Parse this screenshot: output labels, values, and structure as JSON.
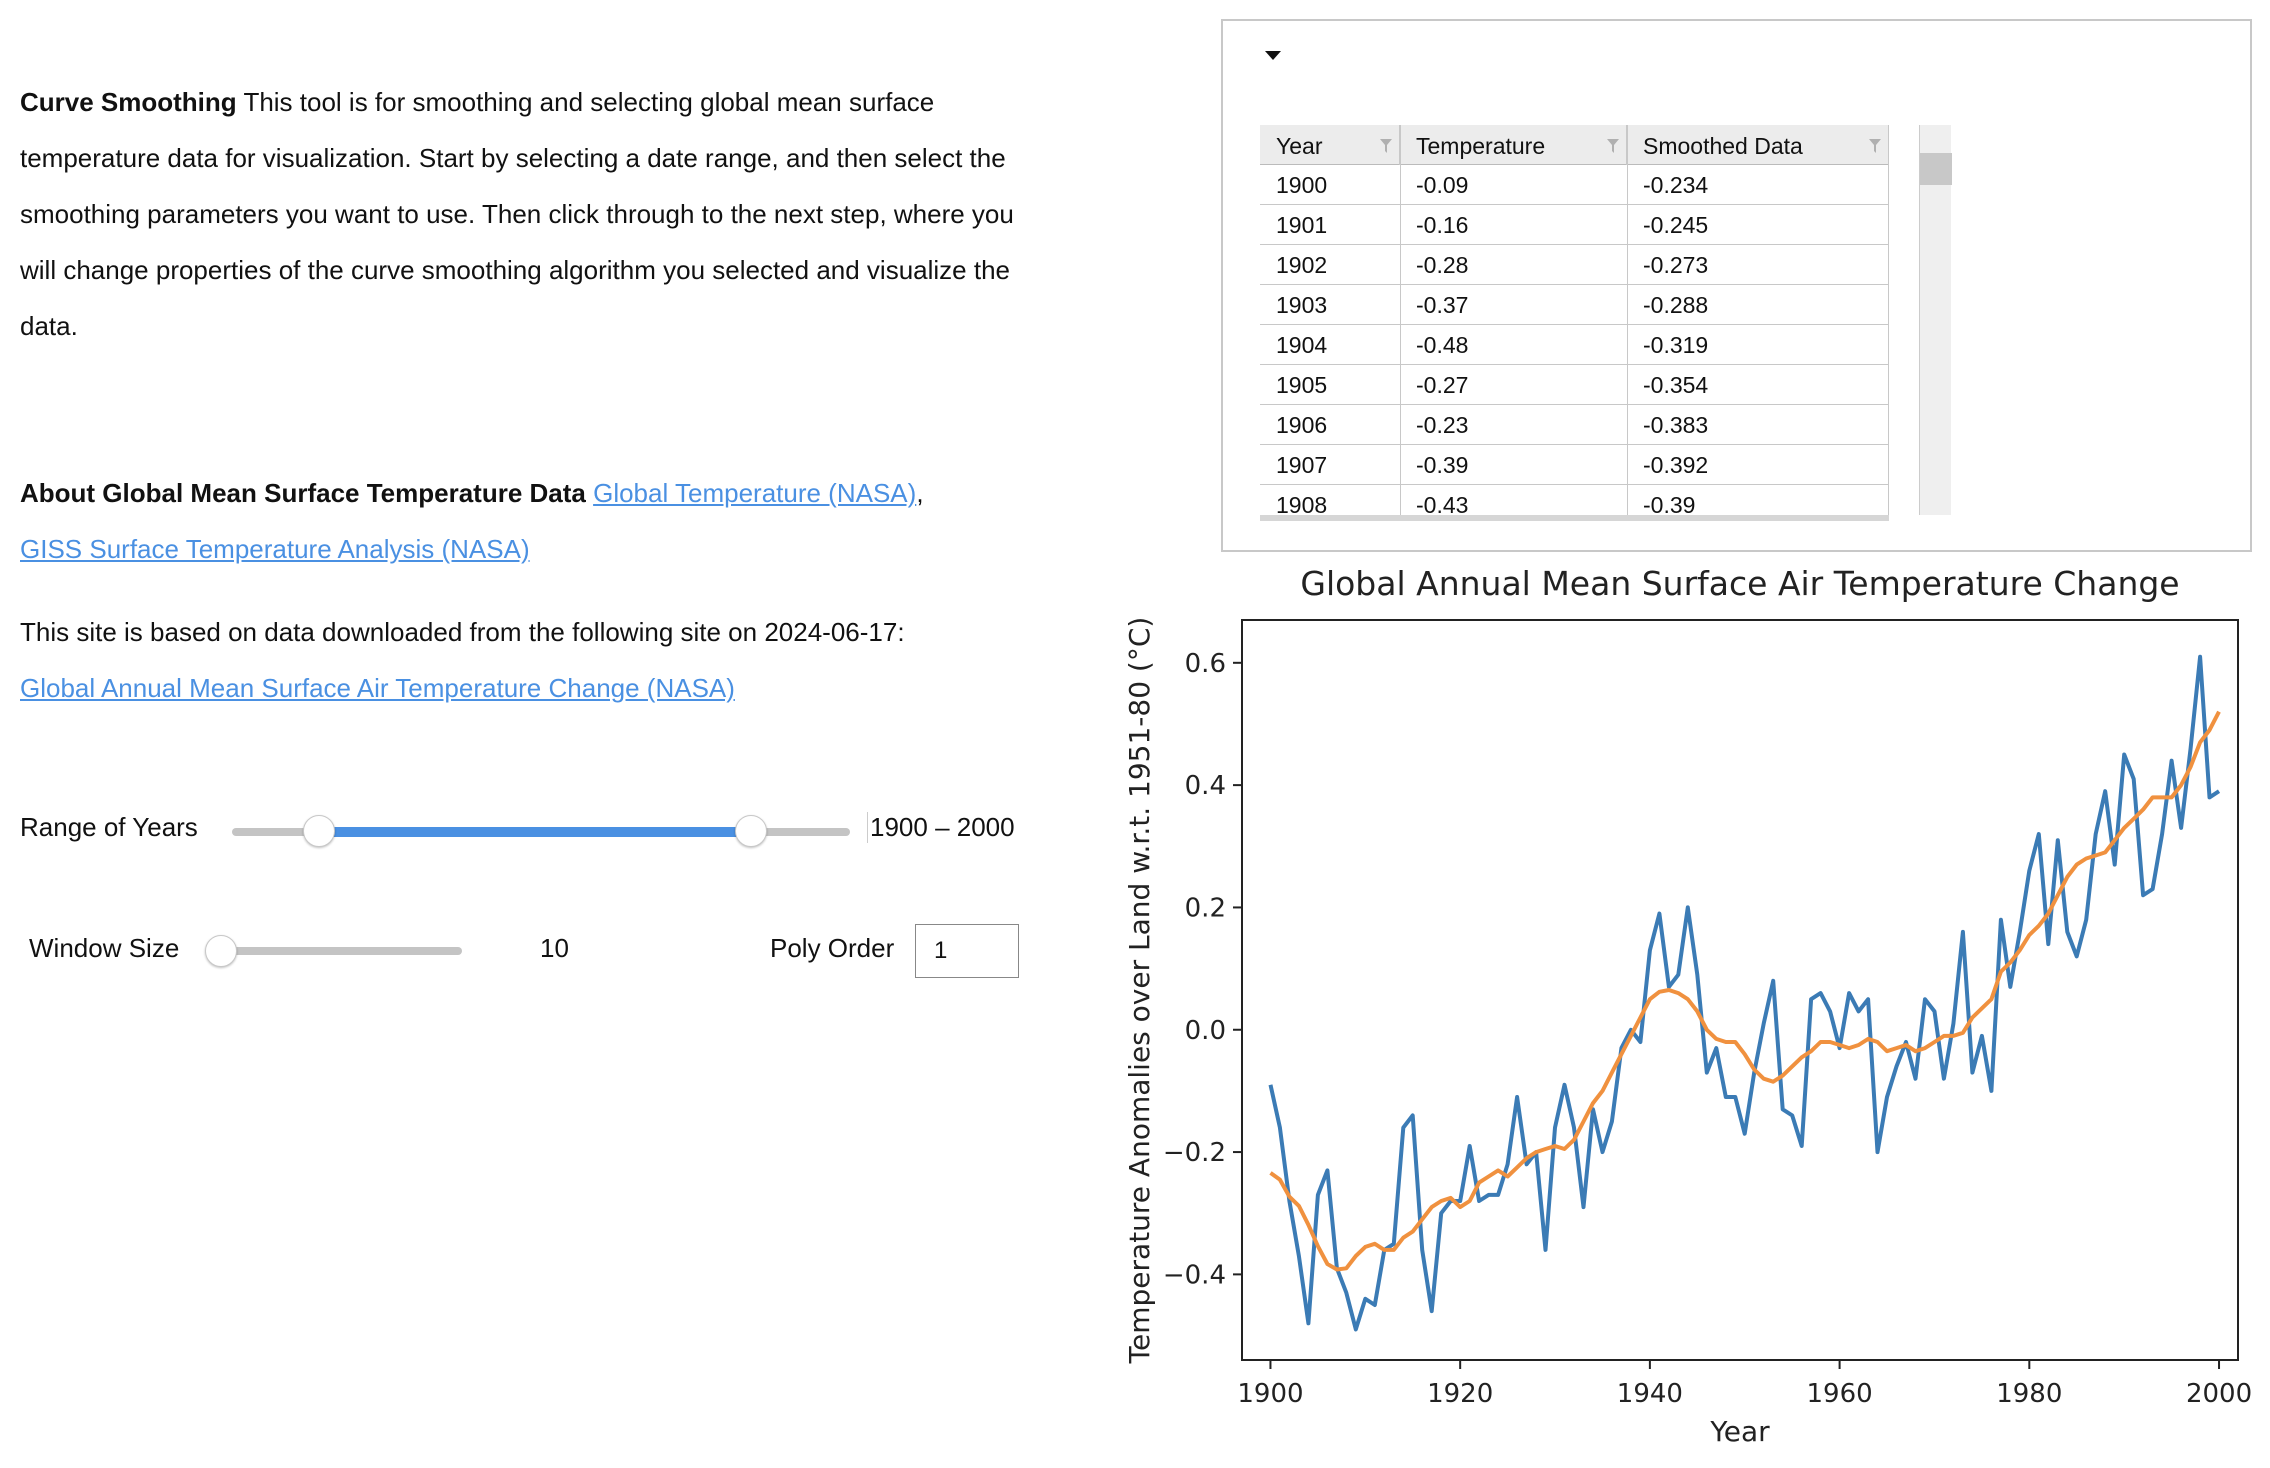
{
  "intro": {
    "title": "Curve Smoothing",
    "text": "This tool is for smoothing and selecting global mean surface temperature data for visualization. Start by selecting a date range, and then select the smoothing parameters you want to use. Then click through to the next step, where you will change properties of the curve smoothing algorithm you selected and visualize the data."
  },
  "about": {
    "title": "About Global Mean Surface Temperature Data",
    "link1": "Global Temperature (NASA)",
    "sep": ",",
    "link2": "GISS Surface Temperature Analysis (NASA)"
  },
  "source": {
    "text": "This site is based on data downloaded from the following site on 2024-06-17:",
    "link": "Global Annual Mean Surface Air Temperature Change (NASA)"
  },
  "controls": {
    "range_label": "Range of Years",
    "range_value": "1900 – 2000",
    "range_min_fraction": 0.14,
    "range_max_fraction": 0.84,
    "window_label": "Window Size",
    "window_value": "10",
    "window_fraction": 0.03,
    "poly_label": "Poly Order",
    "poly_value": "1"
  },
  "colors": {
    "accent": "#4a90e2",
    "raw_series": "#3b7bb5",
    "smoothed_series": "#f0913f"
  },
  "table": {
    "columns": [
      "Year",
      "Temperature",
      "Smoothed Data"
    ],
    "rows": [
      [
        "1900",
        "-0.09",
        "-0.234"
      ],
      [
        "1901",
        "-0.16",
        "-0.245"
      ],
      [
        "1902",
        "-0.28",
        "-0.273"
      ],
      [
        "1903",
        "-0.37",
        "-0.288"
      ],
      [
        "1904",
        "-0.48",
        "-0.319"
      ],
      [
        "1905",
        "-0.27",
        "-0.354"
      ],
      [
        "1906",
        "-0.23",
        "-0.383"
      ],
      [
        "1907",
        "-0.39",
        "-0.392"
      ],
      [
        "1908",
        "-0.43",
        "-0.39"
      ]
    ]
  },
  "chart_data": {
    "type": "line",
    "title": "Global Annual Mean Surface Air Temperature Change",
    "xlabel": "Year",
    "ylabel": "Temperature Anomalies over Land w.r.t. 1951-80 (°C)",
    "xlim": [
      1897,
      2002
    ],
    "ylim": [
      -0.54,
      0.67
    ],
    "xticks": [
      1900,
      1920,
      1940,
      1960,
      1980,
      2000
    ],
    "yticks": [
      -0.4,
      -0.2,
      0.0,
      0.2,
      0.4,
      0.6
    ],
    "ytick_labels": [
      "−0.4",
      "−0.2",
      "0.0",
      "0.2",
      "0.4",
      "0.6"
    ],
    "x_start": 1900,
    "series": [
      {
        "values": [
          -0.09,
          -0.16,
          -0.28,
          -0.37,
          -0.48,
          -0.27,
          -0.23,
          -0.39,
          -0.43,
          -0.49,
          -0.44,
          -0.45,
          -0.36,
          -0.35,
          -0.16,
          -0.14,
          -0.36,
          -0.46,
          -0.3,
          -0.28,
          -0.28,
          -0.19,
          -0.28,
          -0.27,
          -0.27,
          -0.22,
          -0.11,
          -0.22,
          -0.2,
          -0.36,
          -0.16,
          -0.09,
          -0.16,
          -0.29,
          -0.13,
          -0.2,
          -0.15,
          -0.03,
          0.0,
          -0.02,
          0.13,
          0.19,
          0.07,
          0.09,
          0.2,
          0.09,
          -0.07,
          -0.03,
          -0.11,
          -0.11,
          -0.17,
          -0.07,
          0.01,
          0.08,
          -0.13,
          -0.14,
          -0.19,
          0.05,
          0.06,
          0.03,
          -0.03,
          0.06,
          0.03,
          0.05,
          -0.2,
          -0.11,
          -0.06,
          -0.02,
          -0.08,
          0.05,
          0.03,
          -0.08,
          0.01,
          0.16,
          -0.07,
          -0.01,
          -0.1,
          0.18,
          0.07,
          0.16,
          0.26,
          0.32,
          0.14,
          0.31,
          0.16,
          0.12,
          0.18,
          0.32,
          0.39,
          0.27,
          0.45,
          0.41,
          0.22,
          0.23,
          0.32,
          0.44,
          0.33,
          0.46,
          0.61,
          0.38,
          0.39
        ]
      },
      {
        "values": [
          -0.234,
          -0.245,
          -0.273,
          -0.288,
          -0.319,
          -0.354,
          -0.383,
          -0.392,
          -0.39,
          -0.37,
          -0.355,
          -0.35,
          -0.36,
          -0.36,
          -0.34,
          -0.33,
          -0.31,
          -0.29,
          -0.28,
          -0.275,
          -0.29,
          -0.28,
          -0.25,
          -0.24,
          -0.23,
          -0.24,
          -0.225,
          -0.21,
          -0.2,
          -0.195,
          -0.19,
          -0.195,
          -0.18,
          -0.15,
          -0.12,
          -0.1,
          -0.07,
          -0.04,
          -0.01,
          0.02,
          0.05,
          0.062,
          0.065,
          0.06,
          0.05,
          0.03,
          0.0,
          -0.015,
          -0.02,
          -0.02,
          -0.04,
          -0.065,
          -0.08,
          -0.085,
          -0.075,
          -0.06,
          -0.045,
          -0.035,
          -0.02,
          -0.02,
          -0.025,
          -0.03,
          -0.025,
          -0.015,
          -0.02,
          -0.035,
          -0.03,
          -0.025,
          -0.035,
          -0.03,
          -0.02,
          -0.01,
          -0.01,
          -0.005,
          0.02,
          0.035,
          0.05,
          0.095,
          0.11,
          0.13,
          0.155,
          0.17,
          0.19,
          0.22,
          0.25,
          0.27,
          0.28,
          0.285,
          0.29,
          0.31,
          0.33,
          0.345,
          0.36,
          0.38,
          0.38,
          0.38,
          0.4,
          0.43,
          0.47,
          0.49,
          0.52
        ]
      }
    ]
  }
}
